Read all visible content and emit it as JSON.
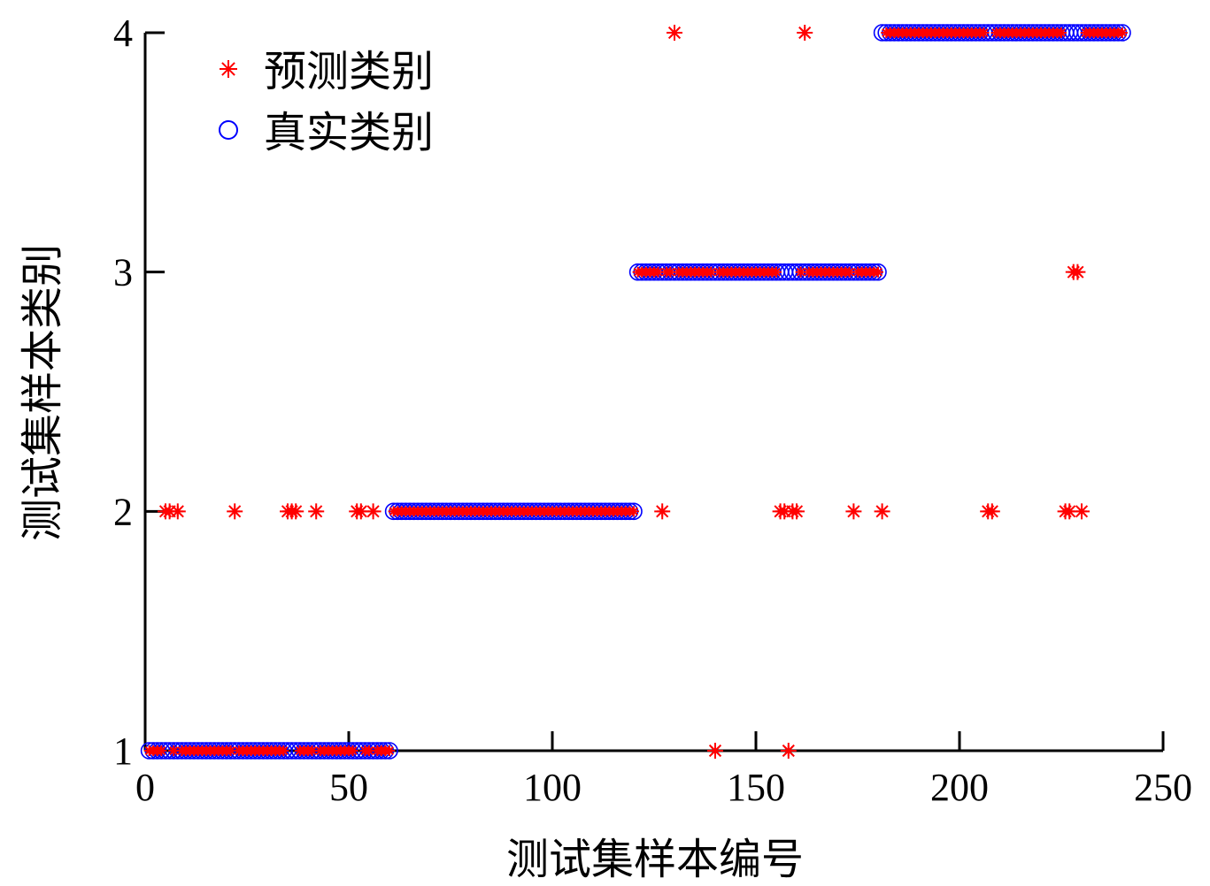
{
  "chart_data": {
    "type": "scatter",
    "title": "",
    "xlabel": "测试集样本编号",
    "ylabel": "测试集样本类别",
    "xlim": [
      0,
      250
    ],
    "ylim": [
      1,
      4
    ],
    "xticks": [
      0,
      50,
      100,
      150,
      200,
      250
    ],
    "yticks": [
      1,
      2,
      3,
      4
    ],
    "grid": false,
    "legend_placement": "top-left",
    "series": [
      {
        "name": "真实类别",
        "marker": "circle",
        "color": "#0000ff",
        "x_ranges": [
          {
            "from": 1,
            "to": 60,
            "y": 1
          },
          {
            "from": 61,
            "to": 120,
            "y": 2
          },
          {
            "from": 121,
            "to": 180,
            "y": 3
          },
          {
            "from": 181,
            "to": 240,
            "y": 4
          }
        ]
      },
      {
        "name": "预测类别",
        "marker": "asterisk",
        "color": "#ff0000",
        "follows_true_class_except_outliers": true,
        "outliers": [
          {
            "x": 5,
            "y": 2
          },
          {
            "x": 6,
            "y": 2
          },
          {
            "x": 8,
            "y": 2
          },
          {
            "x": 22,
            "y": 2
          },
          {
            "x": 35,
            "y": 2
          },
          {
            "x": 36,
            "y": 2
          },
          {
            "x": 37,
            "y": 2
          },
          {
            "x": 42,
            "y": 2
          },
          {
            "x": 52,
            "y": 2
          },
          {
            "x": 53,
            "y": 2
          },
          {
            "x": 56,
            "y": 2
          },
          {
            "x": 127,
            "y": 2
          },
          {
            "x": 130,
            "y": 4
          },
          {
            "x": 140,
            "y": 1
          },
          {
            "x": 156,
            "y": 2
          },
          {
            "x": 157,
            "y": 2
          },
          {
            "x": 158,
            "y": 1
          },
          {
            "x": 159,
            "y": 2
          },
          {
            "x": 160,
            "y": 2
          },
          {
            "x": 162,
            "y": 4
          },
          {
            "x": 174,
            "y": 2
          },
          {
            "x": 181,
            "y": 2
          },
          {
            "x": 207,
            "y": 2
          },
          {
            "x": 208,
            "y": 2
          },
          {
            "x": 226,
            "y": 2
          },
          {
            "x": 227,
            "y": 2
          },
          {
            "x": 228,
            "y": 3
          },
          {
            "x": 229,
            "y": 3
          },
          {
            "x": 230,
            "y": 2
          }
        ]
      }
    ]
  }
}
